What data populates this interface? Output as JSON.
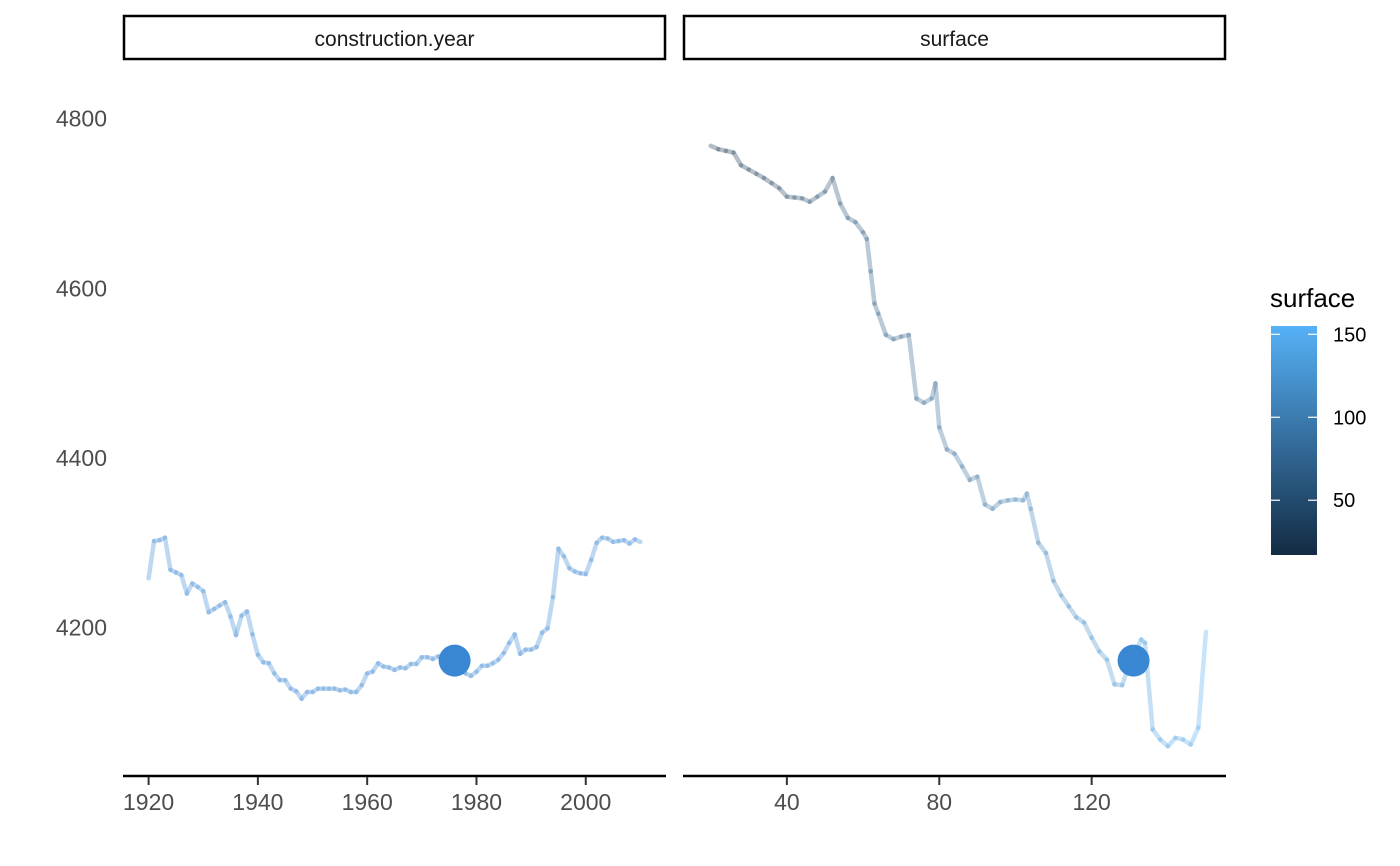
{
  "chart_data": {
    "type": "line",
    "facets": [
      {
        "title": "construction.year",
        "x_ticks": [
          1920,
          1940,
          1960,
          1980,
          2000
        ],
        "xlim": [
          1915.5,
          2014.5
        ],
        "line_color_value": 0,
        "line": {
          "x": [
            1920,
            1921,
            1922,
            1923,
            1924,
            1925,
            1926,
            1927,
            1928,
            1929,
            1930,
            1931,
            1932,
            1933,
            1934,
            1935,
            1936,
            1937,
            1938,
            1939,
            1940,
            1941,
            1942,
            1943,
            1944,
            1945,
            1946,
            1947,
            1948,
            1949,
            1950,
            1951,
            1952,
            1953,
            1954,
            1955,
            1956,
            1957,
            1958,
            1959,
            1960,
            1961,
            1962,
            1963,
            1964,
            1965,
            1966,
            1967,
            1968,
            1969,
            1970,
            1971,
            1972,
            1973,
            1974,
            1975,
            1976,
            1977,
            1978,
            1979,
            1980,
            1981,
            1982,
            1983,
            1984,
            1985,
            1986,
            1987,
            1988,
            1989,
            1990,
            1991,
            1992,
            1993,
            1994,
            1995,
            1996,
            1997,
            1998,
            1999,
            2000,
            2001,
            2002,
            2003,
            2004,
            2005,
            2006,
            2007,
            2008,
            2009,
            2010
          ],
          "y": [
            4258,
            4302,
            4303,
            4306,
            4268,
            4265,
            4262,
            4240,
            4252,
            4248,
            4243,
            4218,
            4222,
            4226,
            4230,
            4213,
            4191,
            4214,
            4219,
            4192,
            4168,
            4159,
            4158,
            4146,
            4138,
            4138,
            4128,
            4125,
            4116,
            4124,
            4124,
            4128,
            4128,
            4128,
            4128,
            4126,
            4127,
            4124,
            4124,
            4132,
            4146,
            4148,
            4158,
            4154,
            4153,
            4150,
            4153,
            4152,
            4157,
            4157,
            4165,
            4165,
            4163,
            4166,
            4166,
            4162,
            4161,
            4156,
            4146,
            4143,
            4148,
            4155,
            4155,
            4158,
            4162,
            4170,
            4182,
            4192,
            4169,
            4174,
            4174,
            4177,
            4194,
            4199,
            4236,
            4293,
            4284,
            4270,
            4266,
            4264,
            4263,
            4280,
            4300,
            4306,
            4305,
            4301,
            4302,
            4303,
            4299,
            4304,
            4301
          ]
        },
        "point": {
          "x": 1976,
          "y": 4161
        }
      },
      {
        "title": "surface",
        "x_ticks": [
          40,
          80,
          120
        ],
        "xlim": [
          13,
          155
        ],
        "color_by": "surface",
        "line": {
          "x": [
            20,
            22,
            24,
            26,
            28,
            30,
            32,
            34,
            36,
            38,
            40,
            42,
            44,
            46,
            48,
            50,
            52,
            54,
            56,
            58,
            60,
            61,
            62,
            63,
            64,
            66,
            68,
            70,
            72,
            74,
            76,
            78,
            79,
            80,
            82,
            84,
            86,
            88,
            90,
            92,
            94,
            96,
            98,
            100,
            102,
            103,
            104,
            106,
            108,
            110,
            112,
            114,
            116,
            118,
            120,
            122,
            124,
            126,
            128,
            130,
            132,
            133,
            134,
            136,
            138,
            140,
            142,
            144,
            146,
            148,
            150
          ],
          "y": [
            4768,
            4764,
            4762,
            4760,
            4745,
            4740,
            4735,
            4730,
            4724,
            4718,
            4708,
            4707,
            4706,
            4702,
            4708,
            4714,
            4730,
            4700,
            4683,
            4678,
            4666,
            4658,
            4620,
            4582,
            4570,
            4545,
            4540,
            4543,
            4545,
            4470,
            4465,
            4470,
            4488,
            4436,
            4410,
            4405,
            4390,
            4374,
            4378,
            4345,
            4340,
            4348,
            4350,
            4351,
            4350,
            4358,
            4340,
            4300,
            4288,
            4255,
            4238,
            4225,
            4212,
            4206,
            4188,
            4172,
            4162,
            4133,
            4132,
            4158,
            4176,
            4186,
            4182,
            4080,
            4068,
            4060,
            4070,
            4068,
            4062,
            4082,
            4195
          ]
        },
        "point": {
          "x": 131,
          "y": 4161
        }
      }
    ],
    "y_ticks": [
      4200,
      4400,
      4600,
      4800
    ],
    "ylim": [
      4025,
      4855
    ],
    "xlabel": "",
    "ylabel": "",
    "point_color": "#3987d2",
    "legend": {
      "title": "surface",
      "position": "right",
      "range": [
        17,
        155
      ],
      "ticks": [
        50,
        100,
        150
      ],
      "color_low": "#132b43",
      "color_high": "#56b1f7"
    },
    "line_opacity": 0.32,
    "grid": false
  }
}
